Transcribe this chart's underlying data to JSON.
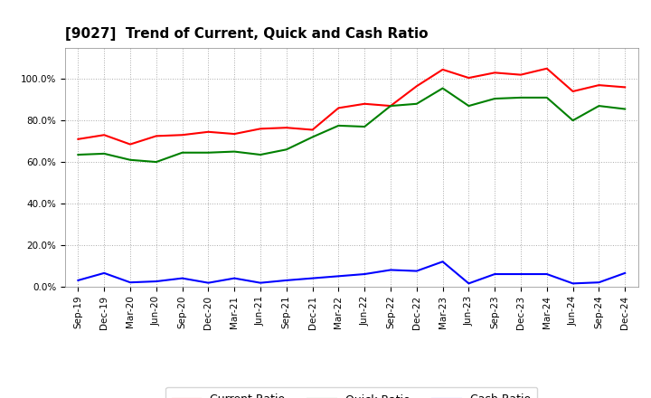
{
  "title": "[9027]  Trend of Current, Quick and Cash Ratio",
  "x_labels": [
    "Sep-19",
    "Dec-19",
    "Mar-20",
    "Jun-20",
    "Sep-20",
    "Dec-20",
    "Mar-21",
    "Jun-21",
    "Sep-21",
    "Dec-21",
    "Mar-22",
    "Jun-22",
    "Sep-22",
    "Dec-22",
    "Mar-23",
    "Jun-23",
    "Sep-23",
    "Dec-23",
    "Mar-24",
    "Jun-24",
    "Sep-24",
    "Dec-24"
  ],
  "current_ratio": [
    0.71,
    0.73,
    0.685,
    0.725,
    0.73,
    0.745,
    0.735,
    0.76,
    0.765,
    0.755,
    0.86,
    0.88,
    0.87,
    0.965,
    1.045,
    1.005,
    1.03,
    1.02,
    1.05,
    0.94,
    0.97,
    0.96
  ],
  "quick_ratio": [
    0.635,
    0.64,
    0.61,
    0.6,
    0.645,
    0.645,
    0.65,
    0.635,
    0.66,
    0.72,
    0.775,
    0.77,
    0.87,
    0.88,
    0.955,
    0.87,
    0.905,
    0.91,
    0.91,
    0.8,
    0.87,
    0.855
  ],
  "cash_ratio": [
    0.03,
    0.065,
    0.02,
    0.025,
    0.04,
    0.018,
    0.04,
    0.018,
    0.03,
    0.04,
    0.05,
    0.06,
    0.08,
    0.075,
    0.12,
    0.015,
    0.06,
    0.06,
    0.06,
    0.015,
    0.02,
    0.065
  ],
  "current_color": "#FF0000",
  "quick_color": "#008000",
  "cash_color": "#0000FF",
  "line_width": 1.5,
  "ylim": [
    0.0,
    1.15
  ],
  "yticks": [
    0.0,
    0.2,
    0.4,
    0.6,
    0.8,
    1.0
  ],
  "bg_color": "#FFFFFF",
  "plot_bg_color": "#FFFFFF",
  "grid_color": "#AAAAAA",
  "title_fontsize": 11,
  "tick_fontsize": 7.5,
  "legend_labels": [
    "Current Ratio",
    "Quick Ratio",
    "Cash Ratio"
  ]
}
